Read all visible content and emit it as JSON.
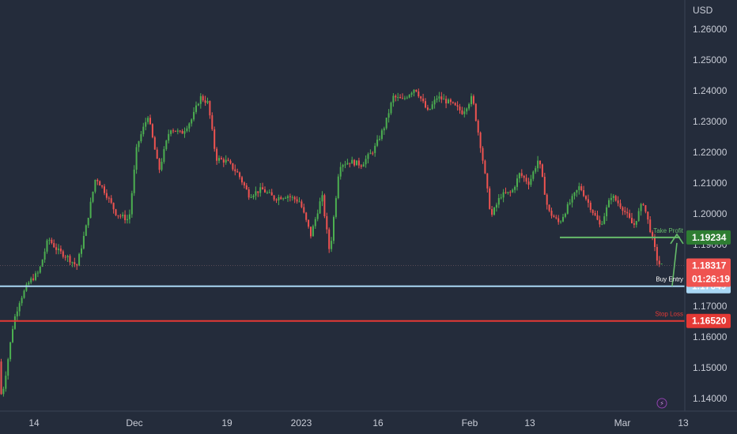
{
  "chart_data": {
    "type": "candlestick",
    "currency_label": "USD",
    "y_ticks": [
      "1.26000",
      "1.25000",
      "1.24000",
      "1.23000",
      "1.22000",
      "1.21000",
      "1.20000",
      "1.19000",
      "1.18000",
      "1.17000",
      "1.16000",
      "1.15000",
      "1.14000"
    ],
    "x_ticks": [
      "14",
      "Dec",
      "19",
      "2023",
      "16",
      "Feb",
      "13",
      "Mar",
      "13"
    ],
    "ylim": [
      1.1375,
      1.2685
    ],
    "series": {
      "anchors": [
        [
          0,
          1.152
        ],
        [
          5,
          1.14
        ],
        [
          12,
          1.151
        ],
        [
          20,
          1.165
        ],
        [
          28,
          1.172
        ],
        [
          40,
          1.178
        ],
        [
          52,
          1.181
        ],
        [
          64,
          1.192
        ],
        [
          76,
          1.188
        ],
        [
          88,
          1.186
        ],
        [
          100,
          1.183
        ],
        [
          112,
          1.196
        ],
        [
          124,
          1.212
        ],
        [
          136,
          1.207
        ],
        [
          150,
          1.2
        ],
        [
          166,
          1.198
        ],
        [
          176,
          1.222
        ],
        [
          190,
          1.232
        ],
        [
          204,
          1.214
        ],
        [
          218,
          1.228
        ],
        [
          232,
          1.226
        ],
        [
          246,
          1.231
        ],
        [
          256,
          1.238
        ],
        [
          266,
          1.236
        ],
        [
          276,
          1.218
        ],
        [
          290,
          1.217
        ],
        [
          304,
          1.213
        ],
        [
          318,
          1.206
        ],
        [
          334,
          1.208
        ],
        [
          350,
          1.205
        ],
        [
          366,
          1.206
        ],
        [
          382,
          1.204
        ],
        [
          396,
          1.193
        ],
        [
          410,
          1.206
        ],
        [
          420,
          1.187
        ],
        [
          432,
          1.216
        ],
        [
          446,
          1.217
        ],
        [
          460,
          1.216
        ],
        [
          476,
          1.221
        ],
        [
          490,
          1.229
        ],
        [
          500,
          1.238
        ],
        [
          512,
          1.237
        ],
        [
          528,
          1.241
        ],
        [
          544,
          1.233
        ],
        [
          556,
          1.238
        ],
        [
          572,
          1.236
        ],
        [
          588,
          1.233
        ],
        [
          600,
          1.238
        ],
        [
          612,
          1.22
        ],
        [
          624,
          1.199
        ],
        [
          636,
          1.206
        ],
        [
          650,
          1.207
        ],
        [
          660,
          1.213
        ],
        [
          672,
          1.21
        ],
        [
          684,
          1.218
        ],
        [
          696,
          1.201
        ],
        [
          710,
          1.197
        ],
        [
          722,
          1.203
        ],
        [
          736,
          1.209
        ],
        [
          748,
          1.203
        ],
        [
          762,
          1.196
        ],
        [
          776,
          1.206
        ],
        [
          790,
          1.202
        ],
        [
          804,
          1.196
        ],
        [
          816,
          1.204
        ],
        [
          826,
          1.194
        ],
        [
          834,
          1.185
        ],
        [
          838,
          1.1832
        ]
      ]
    },
    "current_price": "1.18317",
    "countdown": "01:26:19",
    "levels": [
      {
        "name": "Take Profit",
        "value": 1.19234,
        "label": "1.19234",
        "color": "#2e7d32"
      },
      {
        "name": "Buy Entry",
        "value": 1.17649,
        "label": "1.17649",
        "color": "#a9d8f5"
      },
      {
        "name": "Stop Loss",
        "value": 1.1652,
        "label": "1.16520",
        "color": "#e53935"
      }
    ],
    "annotations": {
      "take_profit": "Take Profit",
      "buy_entry": "Buy Entry",
      "stop_loss": "Stop Loss"
    },
    "colors": {
      "background": "#242c3b",
      "up": "#4caf50",
      "down": "#ef5350",
      "take_profit": "#66bb6a",
      "buy_entry": "#a9d8f5",
      "stop_loss": "#e53935",
      "current": "#ef5350"
    },
    "grid": false
  }
}
